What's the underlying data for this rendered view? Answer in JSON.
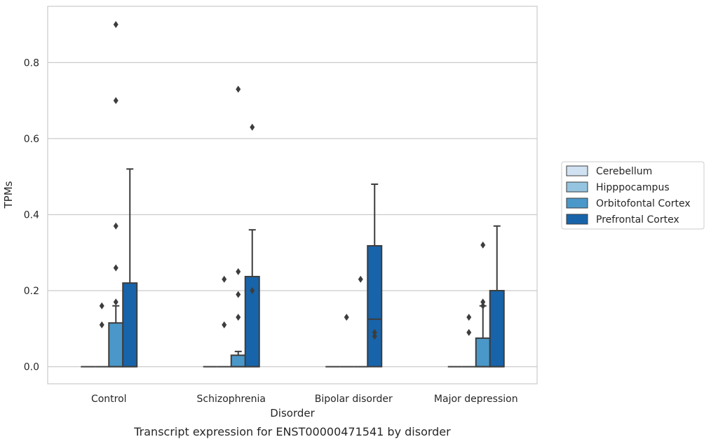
{
  "chart_data": {
    "type": "box",
    "title": "",
    "caption": "Transcript expression for ENST00000471541 by disorder",
    "xlabel": "Disorder",
    "ylabel": "TPMs",
    "ylim": [
      -0.045,
      0.948
    ],
    "yticks": [
      0.0,
      0.2,
      0.4,
      0.6,
      0.8
    ],
    "ytick_labels": [
      "0.0",
      "0.2",
      "0.4",
      "0.6",
      "0.8"
    ],
    "categories": [
      "Control",
      "Schizophrenia",
      "Bipolar disorder",
      "Major depression"
    ],
    "grid": "horizontal",
    "legend_position": "right",
    "series": [
      {
        "name": "Cerebellum",
        "color": "#d0e1f2",
        "boxes": [
          {
            "q1": 0,
            "median": 0,
            "q3": 0,
            "whisker_low": 0,
            "whisker_high": 0,
            "outliers": []
          },
          {
            "q1": 0,
            "median": 0,
            "q3": 0,
            "whisker_low": 0,
            "whisker_high": 0,
            "outliers": []
          },
          {
            "q1": 0,
            "median": 0,
            "q3": 0,
            "whisker_low": 0,
            "whisker_high": 0,
            "outliers": []
          },
          {
            "q1": 0,
            "median": 0,
            "q3": 0,
            "whisker_low": 0,
            "whisker_high": 0,
            "outliers": []
          }
        ]
      },
      {
        "name": "Hipppocampus",
        "color": "#94c4df",
        "boxes": [
          {
            "q1": 0,
            "median": 0,
            "q3": 0,
            "whisker_low": 0,
            "whisker_high": 0,
            "outliers": [
              0.11,
              0.16
            ]
          },
          {
            "q1": 0,
            "median": 0,
            "q3": 0,
            "whisker_low": 0,
            "whisker_high": 0,
            "outliers": [
              0.11,
              0.23
            ]
          },
          {
            "q1": 0,
            "median": 0,
            "q3": 0,
            "whisker_low": 0,
            "whisker_high": 0,
            "outliers": [
              0.13
            ]
          },
          {
            "q1": 0,
            "median": 0,
            "q3": 0,
            "whisker_low": 0,
            "whisker_high": 0,
            "outliers": [
              0.09,
              0.13
            ]
          }
        ]
      },
      {
        "name": "Orbitofontal Cortex",
        "color": "#4a98c9",
        "boxes": [
          {
            "q1": 0,
            "median": 0,
            "q3": 0.115,
            "whisker_low": 0,
            "whisker_high": 0.16,
            "outliers": [
              0.17,
              0.26,
              0.37,
              0.7,
              0.9
            ]
          },
          {
            "q1": 0,
            "median": 0,
            "q3": 0.03,
            "whisker_low": 0,
            "whisker_high": 0.04,
            "outliers": [
              0.13,
              0.19,
              0.25,
              0.73
            ]
          },
          {
            "q1": 0,
            "median": 0,
            "q3": 0,
            "whisker_low": 0,
            "whisker_high": 0,
            "outliers": [
              0.23
            ]
          },
          {
            "q1": 0,
            "median": 0,
            "q3": 0.075,
            "whisker_low": 0,
            "whisker_high": 0.16,
            "outliers": [
              0.16,
              0.17,
              0.32
            ]
          }
        ]
      },
      {
        "name": "Prefrontal Cortex",
        "color": "#1764ab",
        "boxes": [
          {
            "q1": 0,
            "median": 0,
            "q3": 0.22,
            "whisker_low": 0,
            "whisker_high": 0.52,
            "outliers": []
          },
          {
            "q1": 0,
            "median": 0,
            "q3": 0.237,
            "whisker_low": 0,
            "whisker_high": 0.36,
            "outliers": [
              0.2,
              0.63
            ]
          },
          {
            "q1": 0,
            "median": 0.125,
            "q3": 0.318,
            "whisker_low": 0,
            "whisker_high": 0.48,
            "outliers": [
              0.08,
              0.09
            ]
          },
          {
            "q1": 0,
            "median": 0,
            "q3": 0.2,
            "whisker_low": 0,
            "whisker_high": 0.37,
            "outliers": []
          }
        ]
      }
    ]
  }
}
